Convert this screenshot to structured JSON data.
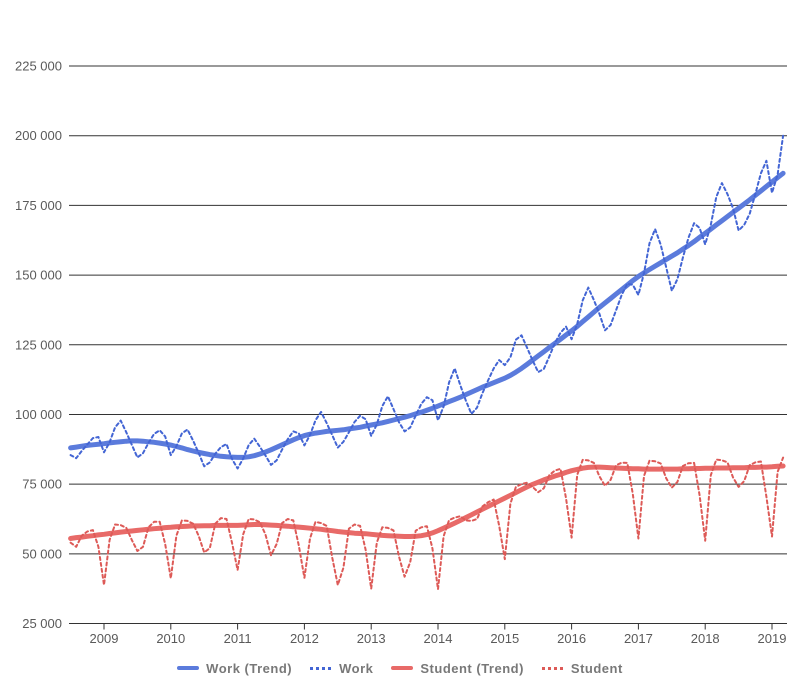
{
  "chart_data": {
    "type": "line",
    "x_axis": {
      "year_ticks": [
        2009,
        2010,
        2011,
        2012,
        2013,
        2014,
        2015,
        2016,
        2017,
        2018,
        2019
      ],
      "range": [
        2008.45,
        2019.3
      ]
    },
    "y_axis": {
      "min": 25000,
      "max": 225000,
      "step": 25000,
      "tick_labels": [
        "225 000",
        "200 000",
        "175 000",
        "150 000",
        "125 000",
        "100 000",
        "75 000",
        "50 000",
        "25 000"
      ],
      "gridlines": true
    },
    "monthly_start_x": 2008.5,
    "legend_position": "bottom",
    "series": [
      {
        "name": "Work (Trend)",
        "style": "solid",
        "color": "#5b7bdc",
        "width": 5,
        "values": [
          88000,
          88300,
          88600,
          88900,
          89100,
          89300,
          89500,
          89800,
          90000,
          90200,
          90400,
          90500,
          90500,
          90400,
          90200,
          90000,
          89700,
          89400,
          89000,
          88500,
          88000,
          87400,
          86900,
          86400,
          86000,
          85600,
          85300,
          85000,
          84800,
          84700,
          84600,
          84600,
          84800,
          85200,
          85800,
          86500,
          87300,
          88200,
          89100,
          90000,
          90900,
          91700,
          92400,
          92900,
          93300,
          93600,
          93900,
          94100,
          94300,
          94500,
          94800,
          95100,
          95400,
          95800,
          96200,
          96600,
          97000,
          97500,
          98000,
          98500,
          99000,
          99600,
          100200,
          100800,
          101500,
          102200,
          103000,
          103800,
          104600,
          105400,
          106200,
          107100,
          108000,
          108900,
          109800,
          110600,
          111400,
          112200,
          113000,
          114000,
          115200,
          116500,
          118000,
          119500,
          121000,
          122500,
          124000,
          125500,
          127000,
          128500,
          130000,
          131600,
          133300,
          135000,
          136700,
          138400,
          140000,
          141600,
          143200,
          144800,
          146400,
          148000,
          149500,
          150800,
          152000,
          153200,
          154400,
          155600,
          156800,
          158000,
          159300,
          160600,
          162000,
          163500,
          165000,
          166500,
          168000,
          169500,
          171000,
          172500,
          174000,
          175500,
          177000,
          178600,
          180200,
          181800,
          183400,
          185000,
          186500
        ]
      },
      {
        "name": "Work",
        "style": "dashed",
        "color": "#4365d4",
        "width": 2,
        "values": [
          85400,
          84300,
          86900,
          89200,
          91500,
          91900,
          86400,
          90000,
          95400,
          97800,
          93600,
          89100,
          84600,
          86100,
          89800,
          93000,
          94300,
          92100,
          85400,
          88600,
          93200,
          94600,
          90600,
          86200,
          81400,
          82800,
          85900,
          88300,
          89400,
          84000,
          80600,
          84200,
          89000,
          91300,
          88400,
          85300,
          81900,
          83500,
          87400,
          91100,
          93900,
          93200,
          88900,
          92600,
          97900,
          100900,
          96900,
          92600,
          88100,
          90200,
          93600,
          97300,
          99500,
          98300,
          92300,
          96400,
          103000,
          106500,
          101900,
          97200,
          93900,
          95300,
          99600,
          103800,
          106200,
          105100,
          97900,
          102800,
          111500,
          116500,
          110500,
          105000,
          100200,
          102400,
          107700,
          112200,
          116500,
          119500,
          117700,
          120500,
          126800,
          128400,
          123900,
          119400,
          115200,
          116300,
          120800,
          125600,
          129300,
          131500,
          127000,
          132400,
          140900,
          145500,
          141000,
          136100,
          130200,
          132100,
          137400,
          142900,
          146900,
          146500,
          142900,
          150700,
          161400,
          166500,
          160900,
          152800,
          144400,
          148500,
          156300,
          163400,
          168600,
          166900,
          161000,
          168000,
          178000,
          183000,
          179000,
          174000,
          166000,
          168000,
          172000,
          179000,
          186500,
          191000,
          179500,
          186000,
          200000
        ]
      },
      {
        "name": "Student (Trend)",
        "style": "solid",
        "color": "#e86a68",
        "width": 5,
        "values": [
          55500,
          55800,
          56000,
          56300,
          56500,
          56800,
          57000,
          57300,
          57500,
          57800,
          58000,
          58200,
          58400,
          58600,
          58800,
          59000,
          59200,
          59400,
          59500,
          59700,
          59800,
          59900,
          60000,
          60000,
          60100,
          60100,
          60200,
          60200,
          60200,
          60200,
          60200,
          60300,
          60400,
          60500,
          60500,
          60400,
          60300,
          60200,
          60000,
          59900,
          59700,
          59600,
          59400,
          59200,
          59000,
          58800,
          58500,
          58300,
          58000,
          57800,
          57600,
          57400,
          57300,
          57200,
          57000,
          56800,
          56600,
          56500,
          56400,
          56300,
          56200,
          56200,
          56300,
          56500,
          56900,
          57500,
          58300,
          59200,
          60100,
          61000,
          62000,
          63000,
          64000,
          65000,
          66000,
          67000,
          68000,
          69000,
          70000,
          71000,
          72000,
          73000,
          74000,
          74900,
          75700,
          76500,
          77200,
          77900,
          78500,
          79200,
          79800,
          80300,
          80700,
          81000,
          81100,
          81100,
          81000,
          80900,
          80800,
          80700,
          80600,
          80500,
          80500,
          80400,
          80400,
          80400,
          80400,
          80400,
          80400,
          80400,
          80500,
          80500,
          80600,
          80600,
          80700,
          80700,
          80800,
          80800,
          80800,
          80900,
          80900,
          80900,
          81000,
          81000,
          81100,
          81100,
          81200,
          81400,
          81500
        ]
      },
      {
        "name": "Student",
        "style": "dashed",
        "color": "#dd5a57",
        "width": 2,
        "values": [
          54000,
          52500,
          56500,
          58000,
          58500,
          52500,
          38800,
          55000,
          60500,
          60300,
          59300,
          55000,
          51000,
          52500,
          59500,
          61500,
          61500,
          53500,
          41200,
          56500,
          62000,
          61800,
          60800,
          56500,
          50500,
          52000,
          60800,
          62800,
          62500,
          54000,
          44200,
          57000,
          62500,
          62300,
          61300,
          57000,
          49500,
          53500,
          61000,
          62500,
          62000,
          53000,
          41400,
          55500,
          61500,
          61000,
          60000,
          48700,
          38800,
          45000,
          59000,
          60500,
          60000,
          51500,
          37500,
          54000,
          59500,
          59300,
          58400,
          49000,
          41800,
          47000,
          58300,
          59500,
          59900,
          52000,
          37300,
          56300,
          62100,
          63000,
          63500,
          62000,
          61800,
          62500,
          67000,
          68500,
          69500,
          60000,
          48100,
          68000,
          74000,
          75000,
          75500,
          74000,
          72100,
          73500,
          78200,
          79900,
          80500,
          70000,
          55800,
          78300,
          83700,
          83500,
          82600,
          77800,
          74400,
          76500,
          81800,
          82700,
          82600,
          71500,
          55500,
          77900,
          83400,
          83200,
          82400,
          77100,
          73700,
          75800,
          81500,
          82500,
          82600,
          71000,
          54700,
          78200,
          83800,
          83600,
          82800,
          77400,
          74000,
          76100,
          81800,
          82800,
          83100,
          70500,
          56200,
          79400,
          84500
        ]
      }
    ],
    "style": {
      "background": "#ffffff",
      "gridline_color": "#333333",
      "axis_color": "#333333",
      "axis_label_color": "#5a5a5a",
      "legend_text_color": "#787878"
    }
  }
}
